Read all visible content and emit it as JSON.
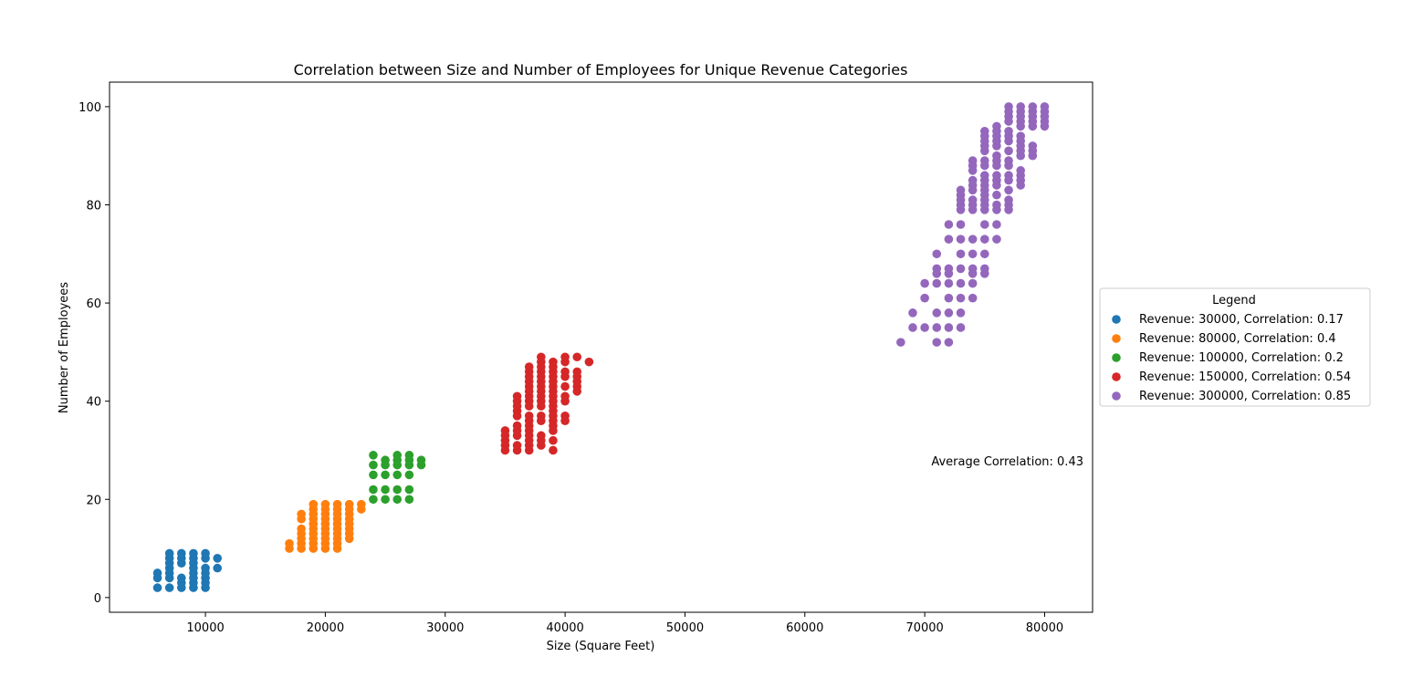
{
  "chart_data": {
    "type": "scatter",
    "title": "Correlation between Size and Number of Employees for Unique Revenue Categories",
    "xlabel": "Size (Square Feet)",
    "ylabel": "Number of Employees",
    "xlim": [
      2000,
      84000
    ],
    "ylim": [
      -3,
      105
    ],
    "xticks": [
      10000,
      20000,
      30000,
      40000,
      50000,
      60000,
      70000,
      80000
    ],
    "yticks": [
      0,
      20,
      40,
      60,
      80,
      100
    ],
    "grid": false,
    "legend": {
      "title": "Legend",
      "placement": "right-outside"
    },
    "annotation": "Average Correlation: 0.43",
    "series": [
      {
        "name": "Revenue: 30000, Correlation: 0.17",
        "color": "#1f77b4",
        "points": [
          [
            6000,
            2
          ],
          [
            6000,
            4
          ],
          [
            6000,
            5
          ],
          [
            7000,
            2
          ],
          [
            7000,
            4
          ],
          [
            7000,
            5
          ],
          [
            7000,
            6
          ],
          [
            7000,
            7
          ],
          [
            7000,
            8
          ],
          [
            7000,
            9
          ],
          [
            8000,
            2
          ],
          [
            8000,
            3
          ],
          [
            8000,
            4
          ],
          [
            8000,
            7
          ],
          [
            8000,
            8
          ],
          [
            8000,
            9
          ],
          [
            9000,
            2
          ],
          [
            9000,
            3
          ],
          [
            9000,
            4
          ],
          [
            9000,
            5
          ],
          [
            9000,
            6
          ],
          [
            9000,
            7
          ],
          [
            9000,
            8
          ],
          [
            9000,
            9
          ],
          [
            10000,
            2
          ],
          [
            10000,
            3
          ],
          [
            10000,
            4
          ],
          [
            10000,
            5
          ],
          [
            10000,
            6
          ],
          [
            10000,
            8
          ],
          [
            10000,
            9
          ],
          [
            11000,
            6
          ],
          [
            11000,
            8
          ]
        ]
      },
      {
        "name": "Revenue: 80000, Correlation: 0.4",
        "color": "#ff7f0e",
        "points": [
          [
            17000,
            10
          ],
          [
            17000,
            11
          ],
          [
            18000,
            10
          ],
          [
            18000,
            11
          ],
          [
            18000,
            12
          ],
          [
            18000,
            13
          ],
          [
            18000,
            14
          ],
          [
            18000,
            16
          ],
          [
            18000,
            17
          ],
          [
            19000,
            10
          ],
          [
            19000,
            11
          ],
          [
            19000,
            12
          ],
          [
            19000,
            13
          ],
          [
            19000,
            14
          ],
          [
            19000,
            15
          ],
          [
            19000,
            16
          ],
          [
            19000,
            17
          ],
          [
            19000,
            18
          ],
          [
            19000,
            19
          ],
          [
            20000,
            10
          ],
          [
            20000,
            11
          ],
          [
            20000,
            12
          ],
          [
            20000,
            13
          ],
          [
            20000,
            14
          ],
          [
            20000,
            15
          ],
          [
            20000,
            16
          ],
          [
            20000,
            17
          ],
          [
            20000,
            18
          ],
          [
            20000,
            19
          ],
          [
            21000,
            10
          ],
          [
            21000,
            11
          ],
          [
            21000,
            12
          ],
          [
            21000,
            13
          ],
          [
            21000,
            14
          ],
          [
            21000,
            15
          ],
          [
            21000,
            16
          ],
          [
            21000,
            17
          ],
          [
            21000,
            18
          ],
          [
            21000,
            19
          ],
          [
            22000,
            12
          ],
          [
            22000,
            13
          ],
          [
            22000,
            14
          ],
          [
            22000,
            15
          ],
          [
            22000,
            16
          ],
          [
            22000,
            17
          ],
          [
            22000,
            18
          ],
          [
            22000,
            19
          ],
          [
            23000,
            18
          ],
          [
            23000,
            19
          ]
        ]
      },
      {
        "name": "Revenue: 100000, Correlation: 0.2",
        "color": "#2ca02c",
        "points": [
          [
            24000,
            20
          ],
          [
            24000,
            22
          ],
          [
            24000,
            25
          ],
          [
            24000,
            27
          ],
          [
            24000,
            29
          ],
          [
            25000,
            20
          ],
          [
            25000,
            22
          ],
          [
            25000,
            25
          ],
          [
            25000,
            27
          ],
          [
            25000,
            28
          ],
          [
            26000,
            20
          ],
          [
            26000,
            22
          ],
          [
            26000,
            25
          ],
          [
            26000,
            27
          ],
          [
            26000,
            28
          ],
          [
            26000,
            29
          ],
          [
            27000,
            20
          ],
          [
            27000,
            22
          ],
          [
            27000,
            25
          ],
          [
            27000,
            27
          ],
          [
            27000,
            28
          ],
          [
            27000,
            29
          ],
          [
            28000,
            27
          ],
          [
            28000,
            28
          ]
        ]
      },
      {
        "name": "Revenue: 150000, Correlation: 0.54",
        "color": "#d62728",
        "points": [
          [
            35000,
            30
          ],
          [
            35000,
            31
          ],
          [
            35000,
            32
          ],
          [
            35000,
            33
          ],
          [
            35000,
            34
          ],
          [
            36000,
            30
          ],
          [
            36000,
            31
          ],
          [
            36000,
            33
          ],
          [
            36000,
            34
          ],
          [
            36000,
            35
          ],
          [
            36000,
            37
          ],
          [
            36000,
            38
          ],
          [
            36000,
            39
          ],
          [
            36000,
            40
          ],
          [
            36000,
            41
          ],
          [
            37000,
            30
          ],
          [
            37000,
            31
          ],
          [
            37000,
            32
          ],
          [
            37000,
            33
          ],
          [
            37000,
            34
          ],
          [
            37000,
            35
          ],
          [
            37000,
            36
          ],
          [
            37000,
            37
          ],
          [
            37000,
            39
          ],
          [
            37000,
            40
          ],
          [
            37000,
            41
          ],
          [
            37000,
            42
          ],
          [
            37000,
            43
          ],
          [
            37000,
            44
          ],
          [
            37000,
            45
          ],
          [
            37000,
            46
          ],
          [
            37000,
            47
          ],
          [
            38000,
            31
          ],
          [
            38000,
            32
          ],
          [
            38000,
            33
          ],
          [
            38000,
            36
          ],
          [
            38000,
            37
          ],
          [
            38000,
            39
          ],
          [
            38000,
            40
          ],
          [
            38000,
            41
          ],
          [
            38000,
            42
          ],
          [
            38000,
            43
          ],
          [
            38000,
            44
          ],
          [
            38000,
            45
          ],
          [
            38000,
            46
          ],
          [
            38000,
            47
          ],
          [
            38000,
            48
          ],
          [
            38000,
            49
          ],
          [
            39000,
            30
          ],
          [
            39000,
            32
          ],
          [
            39000,
            34
          ],
          [
            39000,
            35
          ],
          [
            39000,
            36
          ],
          [
            39000,
            37
          ],
          [
            39000,
            38
          ],
          [
            39000,
            39
          ],
          [
            39000,
            40
          ],
          [
            39000,
            41
          ],
          [
            39000,
            42
          ],
          [
            39000,
            43
          ],
          [
            39000,
            44
          ],
          [
            39000,
            45
          ],
          [
            39000,
            46
          ],
          [
            39000,
            47
          ],
          [
            39000,
            48
          ],
          [
            40000,
            36
          ],
          [
            40000,
            37
          ],
          [
            40000,
            40
          ],
          [
            40000,
            41
          ],
          [
            40000,
            43
          ],
          [
            40000,
            45
          ],
          [
            40000,
            46
          ],
          [
            40000,
            48
          ],
          [
            40000,
            49
          ],
          [
            41000,
            42
          ],
          [
            41000,
            43
          ],
          [
            41000,
            44
          ],
          [
            41000,
            45
          ],
          [
            41000,
            46
          ],
          [
            41000,
            49
          ],
          [
            42000,
            48
          ]
        ]
      },
      {
        "name": "Revenue: 300000, Correlation: 0.85",
        "color": "#9467bd",
        "points": [
          [
            68000,
            52
          ],
          [
            69000,
            55
          ],
          [
            69000,
            58
          ],
          [
            70000,
            55
          ],
          [
            70000,
            61
          ],
          [
            70000,
            64
          ],
          [
            71000,
            52
          ],
          [
            71000,
            55
          ],
          [
            71000,
            58
          ],
          [
            71000,
            64
          ],
          [
            71000,
            66
          ],
          [
            71000,
            67
          ],
          [
            71000,
            70
          ],
          [
            72000,
            52
          ],
          [
            72000,
            55
          ],
          [
            72000,
            58
          ],
          [
            72000,
            61
          ],
          [
            72000,
            64
          ],
          [
            72000,
            66
          ],
          [
            72000,
            67
          ],
          [
            72000,
            73
          ],
          [
            72000,
            76
          ],
          [
            73000,
            55
          ],
          [
            73000,
            58
          ],
          [
            73000,
            61
          ],
          [
            73000,
            64
          ],
          [
            73000,
            67
          ],
          [
            73000,
            70
          ],
          [
            73000,
            73
          ],
          [
            73000,
            76
          ],
          [
            73000,
            79
          ],
          [
            73000,
            80
          ],
          [
            73000,
            81
          ],
          [
            73000,
            82
          ],
          [
            73000,
            83
          ],
          [
            74000,
            61
          ],
          [
            74000,
            64
          ],
          [
            74000,
            66
          ],
          [
            74000,
            67
          ],
          [
            74000,
            70
          ],
          [
            74000,
            73
          ],
          [
            74000,
            79
          ],
          [
            74000,
            80
          ],
          [
            74000,
            81
          ],
          [
            74000,
            83
          ],
          [
            74000,
            84
          ],
          [
            74000,
            85
          ],
          [
            74000,
            87
          ],
          [
            74000,
            88
          ],
          [
            74000,
            89
          ],
          [
            75000,
            66
          ],
          [
            75000,
            67
          ],
          [
            75000,
            70
          ],
          [
            75000,
            73
          ],
          [
            75000,
            76
          ],
          [
            75000,
            79
          ],
          [
            75000,
            80
          ],
          [
            75000,
            81
          ],
          [
            75000,
            82
          ],
          [
            75000,
            83
          ],
          [
            75000,
            84
          ],
          [
            75000,
            85
          ],
          [
            75000,
            86
          ],
          [
            75000,
            88
          ],
          [
            75000,
            89
          ],
          [
            75000,
            91
          ],
          [
            75000,
            92
          ],
          [
            75000,
            93
          ],
          [
            75000,
            94
          ],
          [
            75000,
            95
          ],
          [
            76000,
            73
          ],
          [
            76000,
            76
          ],
          [
            76000,
            79
          ],
          [
            76000,
            80
          ],
          [
            76000,
            82
          ],
          [
            76000,
            84
          ],
          [
            76000,
            85
          ],
          [
            76000,
            86
          ],
          [
            76000,
            88
          ],
          [
            76000,
            89
          ],
          [
            76000,
            90
          ],
          [
            76000,
            92
          ],
          [
            76000,
            93
          ],
          [
            76000,
            94
          ],
          [
            76000,
            95
          ],
          [
            76000,
            96
          ],
          [
            77000,
            79
          ],
          [
            77000,
            80
          ],
          [
            77000,
            81
          ],
          [
            77000,
            83
          ],
          [
            77000,
            85
          ],
          [
            77000,
            86
          ],
          [
            77000,
            88
          ],
          [
            77000,
            89
          ],
          [
            77000,
            91
          ],
          [
            77000,
            93
          ],
          [
            77000,
            94
          ],
          [
            77000,
            95
          ],
          [
            77000,
            97
          ],
          [
            77000,
            98
          ],
          [
            77000,
            99
          ],
          [
            77000,
            100
          ],
          [
            78000,
            84
          ],
          [
            78000,
            85
          ],
          [
            78000,
            86
          ],
          [
            78000,
            87
          ],
          [
            78000,
            90
          ],
          [
            78000,
            91
          ],
          [
            78000,
            92
          ],
          [
            78000,
            93
          ],
          [
            78000,
            94
          ],
          [
            78000,
            96
          ],
          [
            78000,
            97
          ],
          [
            78000,
            98
          ],
          [
            78000,
            99
          ],
          [
            78000,
            100
          ],
          [
            79000,
            90
          ],
          [
            79000,
            91
          ],
          [
            79000,
            92
          ],
          [
            79000,
            96
          ],
          [
            79000,
            97
          ],
          [
            79000,
            98
          ],
          [
            79000,
            99
          ],
          [
            79000,
            100
          ],
          [
            80000,
            96
          ],
          [
            80000,
            97
          ],
          [
            80000,
            98
          ],
          [
            80000,
            99
          ],
          [
            80000,
            100
          ]
        ]
      }
    ]
  }
}
